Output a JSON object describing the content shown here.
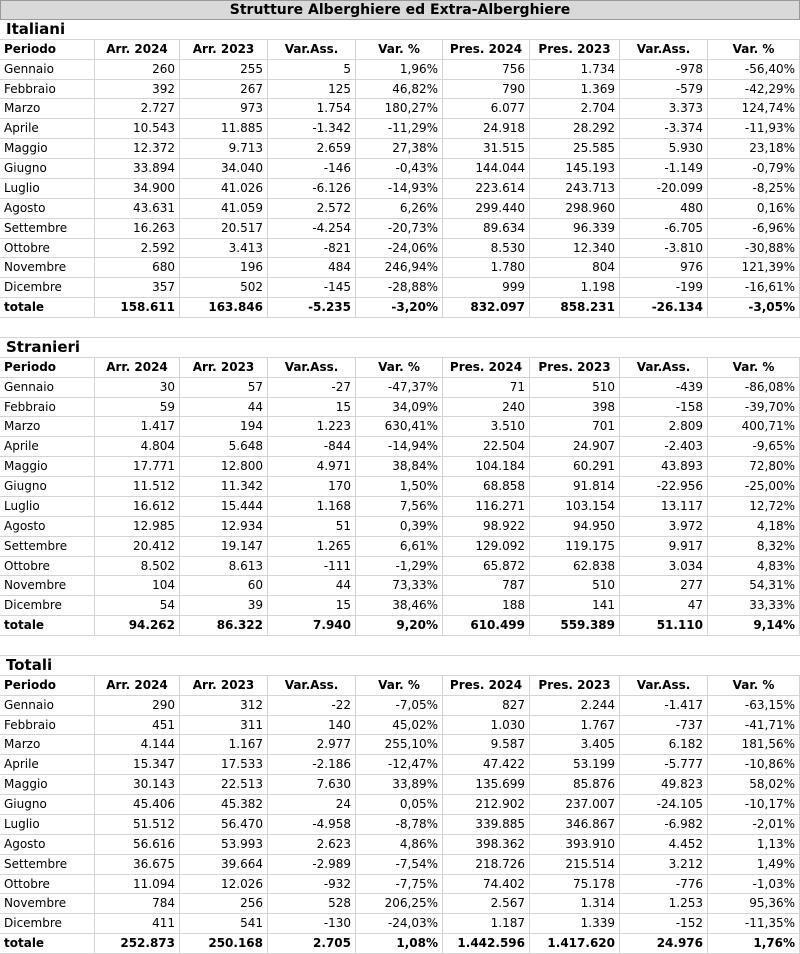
{
  "title": "Strutture Alberghiere ed Extra-Alberghiere",
  "sections": [
    {
      "name": "Italiani",
      "header": [
        "Periodo",
        "Arr. 2024",
        "Arr. 2023",
        "Var.Ass.",
        "Var. %",
        "Pres. 2024",
        "Pres. 2023",
        "Var.Ass.",
        "Var. %"
      ],
      "rows": [
        [
          "Gennaio",
          "260",
          "255",
          "5",
          "1,96%",
          "756",
          "1.734",
          "-978",
          "-56,40%"
        ],
        [
          "Febbraio",
          "392",
          "267",
          "125",
          "46,82%",
          "790",
          "1.369",
          "-579",
          "-42,29%"
        ],
        [
          "Marzo",
          "2.727",
          "973",
          "1.754",
          "180,27%",
          "6.077",
          "2.704",
          "3.373",
          "124,74%"
        ],
        [
          "Aprile",
          "10.543",
          "11.885",
          "-1.342",
          "-11,29%",
          "24.918",
          "28.292",
          "-3.374",
          "-11,93%"
        ],
        [
          "Maggio",
          "12.372",
          "9.713",
          "2.659",
          "27,38%",
          "31.515",
          "25.585",
          "5.930",
          "23,18%"
        ],
        [
          "Giugno",
          "33.894",
          "34.040",
          "-146",
          "-0,43%",
          "144.044",
          "145.193",
          "-1.149",
          "-0,79%"
        ],
        [
          "Luglio",
          "34.900",
          "41.026",
          "-6.126",
          "-14,93%",
          "223.614",
          "243.713",
          "-20.099",
          "-8,25%"
        ],
        [
          "Agosto",
          "43.631",
          "41.059",
          "2.572",
          "6,26%",
          "299.440",
          "298.960",
          "480",
          "0,16%"
        ],
        [
          "Settembre",
          "16.263",
          "20.517",
          "-4.254",
          "-20,73%",
          "89.634",
          "96.339",
          "-6.705",
          "-6,96%"
        ],
        [
          "Ottobre",
          "2.592",
          "3.413",
          "-821",
          "-24,06%",
          "8.530",
          "12.340",
          "-3.810",
          "-30,88%"
        ],
        [
          "Novembre",
          "680",
          "196",
          "484",
          "246,94%",
          "1.780",
          "804",
          "976",
          "121,39%"
        ],
        [
          "Dicembre",
          "357",
          "502",
          "-145",
          "-28,88%",
          "999",
          "1.198",
          "-199",
          "-16,61%"
        ]
      ],
      "total": [
        "totale",
        "158.611",
        "163.846",
        "-5.235",
        "-3,20%",
        "832.097",
        "858.231",
        "-26.134",
        "-3,05%"
      ]
    },
    {
      "name": "Stranieri",
      "header": [
        "Periodo",
        "Arr. 2024",
        "Arr. 2023",
        "Var.Ass.",
        "Var. %",
        "Pres. 2024",
        "Pres. 2023",
        "Var.Ass.",
        "Var. %"
      ],
      "rows": [
        [
          "Gennaio",
          "30",
          "57",
          "-27",
          "-47,37%",
          "71",
          "510",
          "-439",
          "-86,08%"
        ],
        [
          "Febbraio",
          "59",
          "44",
          "15",
          "34,09%",
          "240",
          "398",
          "-158",
          "-39,70%"
        ],
        [
          "Marzo",
          "1.417",
          "194",
          "1.223",
          "630,41%",
          "3.510",
          "701",
          "2.809",
          "400,71%"
        ],
        [
          "Aprile",
          "4.804",
          "5.648",
          "-844",
          "-14,94%",
          "22.504",
          "24.907",
          "-2.403",
          "-9,65%"
        ],
        [
          "Maggio",
          "17.771",
          "12.800",
          "4.971",
          "38,84%",
          "104.184",
          "60.291",
          "43.893",
          "72,80%"
        ],
        [
          "Giugno",
          "11.512",
          "11.342",
          "170",
          "1,50%",
          "68.858",
          "91.814",
          "-22.956",
          "-25,00%"
        ],
        [
          "Luglio",
          "16.612",
          "15.444",
          "1.168",
          "7,56%",
          "116.271",
          "103.154",
          "13.117",
          "12,72%"
        ],
        [
          "Agosto",
          "12.985",
          "12.934",
          "51",
          "0,39%",
          "98.922",
          "94.950",
          "3.972",
          "4,18%"
        ],
        [
          "Settembre",
          "20.412",
          "19.147",
          "1.265",
          "6,61%",
          "129.092",
          "119.175",
          "9.917",
          "8,32%"
        ],
        [
          "Ottobre",
          "8.502",
          "8.613",
          "-111",
          "-1,29%",
          "65.872",
          "62.838",
          "3.034",
          "4,83%"
        ],
        [
          "Novembre",
          "104",
          "60",
          "44",
          "73,33%",
          "787",
          "510",
          "277",
          "54,31%"
        ],
        [
          "Dicembre",
          "54",
          "39",
          "15",
          "38,46%",
          "188",
          "141",
          "47",
          "33,33%"
        ]
      ],
      "total": [
        "totale",
        "94.262",
        "86.322",
        "7.940",
        "9,20%",
        "610.499",
        "559.389",
        "51.110",
        "9,14%"
      ]
    },
    {
      "name": "Totali",
      "header": [
        "Periodo",
        "Arr. 2024",
        "Arr. 2023",
        "Var.Ass.",
        "Var. %",
        "Pres. 2024",
        "Pres. 2023",
        "Var.Ass.",
        "Var. %"
      ],
      "rows": [
        [
          "Gennaio",
          "290",
          "312",
          "-22",
          "-7,05%",
          "827",
          "2.244",
          "-1.417",
          "-63,15%"
        ],
        [
          "Febbraio",
          "451",
          "311",
          "140",
          "45,02%",
          "1.030",
          "1.767",
          "-737",
          "-41,71%"
        ],
        [
          "Marzo",
          "4.144",
          "1.167",
          "2.977",
          "255,10%",
          "9.587",
          "3.405",
          "6.182",
          "181,56%"
        ],
        [
          "Aprile",
          "15.347",
          "17.533",
          "-2.186",
          "-12,47%",
          "47.422",
          "53.199",
          "-5.777",
          "-10,86%"
        ],
        [
          "Maggio",
          "30.143",
          "22.513",
          "7.630",
          "33,89%",
          "135.699",
          "85.876",
          "49.823",
          "58,02%"
        ],
        [
          "Giugno",
          "45.406",
          "45.382",
          "24",
          "0,05%",
          "212.902",
          "237.007",
          "-24.105",
          "-10,17%"
        ],
        [
          "Luglio",
          "51.512",
          "56.470",
          "-4.958",
          "-8,78%",
          "339.885",
          "346.867",
          "-6.982",
          "-2,01%"
        ],
        [
          "Agosto",
          "56.616",
          "53.993",
          "2.623",
          "4,86%",
          "398.362",
          "393.910",
          "4.452",
          "1,13%"
        ],
        [
          "Settembre",
          "36.675",
          "39.664",
          "-2.989",
          "-7,54%",
          "218.726",
          "215.514",
          "3.212",
          "1,49%"
        ],
        [
          "Ottobre",
          "11.094",
          "12.026",
          "-932",
          "-7,75%",
          "74.402",
          "75.178",
          "-776",
          "-1,03%"
        ],
        [
          "Novembre",
          "784",
          "256",
          "528",
          "206,25%",
          "2.567",
          "1.314",
          "1.253",
          "95,36%"
        ],
        [
          "Dicembre",
          "411",
          "541",
          "-130",
          "-24,03%",
          "1.187",
          "1.339",
          "-152",
          "-11,35%"
        ]
      ],
      "total": [
        "totale",
        "252.873",
        "250.168",
        "2.705",
        "1,08%",
        "1.442.596",
        "1.417.620",
        "24.976",
        "1,76%"
      ]
    }
  ]
}
